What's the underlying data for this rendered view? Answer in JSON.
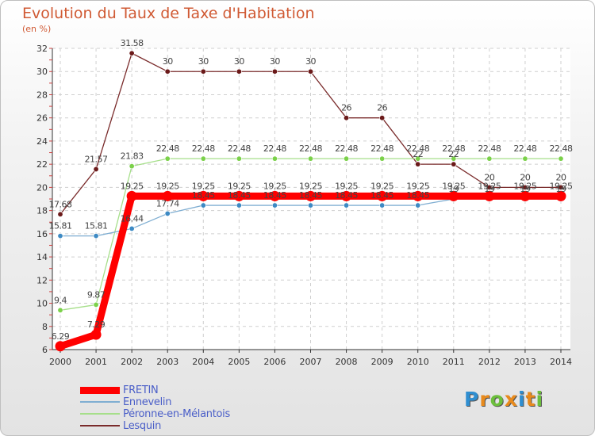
{
  "chart_data": {
    "type": "line",
    "title": "Evolution du Taux de Taxe d'Habitation",
    "subtitle": "(en %)",
    "x": [
      "2000",
      "2001",
      "2002",
      "2003",
      "2004",
      "2005",
      "2006",
      "2007",
      "2008",
      "2009",
      "2010",
      "2011",
      "2012",
      "2013",
      "2014"
    ],
    "ylim": [
      6,
      32
    ],
    "yticks": [
      6,
      8,
      10,
      12,
      14,
      16,
      18,
      20,
      22,
      24,
      26,
      28,
      30,
      32
    ],
    "grid": true,
    "legend_position": "bottom-left",
    "series": [
      {
        "name": "Lesquin",
        "color": "#7a2b2b",
        "marker_color": "#6b1a1a",
        "width": 1.3,
        "values": [
          17.68,
          21.57,
          31.58,
          30,
          30,
          30,
          30,
          30,
          26,
          26,
          22,
          22,
          20,
          20,
          20
        ],
        "labels": [
          "17.68",
          "21.57",
          "31.58",
          "30",
          "30",
          "30",
          "30",
          "30",
          "26",
          "26",
          "22",
          "22",
          "20",
          "20",
          "20"
        ]
      },
      {
        "name": "Péronne-en-Mélantois",
        "color": "#a6df8a",
        "marker_color": "#7bd14a",
        "width": 1.3,
        "values": [
          9.4,
          9.87,
          21.83,
          22.48,
          22.48,
          22.48,
          22.48,
          22.48,
          22.48,
          22.48,
          22.48,
          22.48,
          22.48,
          22.48,
          22.48
        ],
        "labels": [
          "9.4",
          "9.87",
          "21.83",
          "22.48",
          "22.48",
          "22.48",
          "22.48",
          "22.48",
          "22.48",
          "22.48",
          "22.48",
          "22.48",
          "22.48",
          "22.48",
          "22.48"
        ]
      },
      {
        "name": "Ennevelin",
        "color": "#7faed2",
        "marker_color": "#3d8ac4",
        "width": 1.3,
        "values": [
          15.81,
          15.81,
          16.44,
          17.74,
          18.45,
          18.45,
          18.45,
          18.45,
          18.45,
          18.45,
          18.45,
          19,
          19,
          19,
          19
        ],
        "labels": [
          "15.81",
          "15.81",
          "16.44",
          "17.74",
          "18.45",
          "18.45",
          "18.45",
          "18.45",
          "18.45",
          "18.45",
          "18.45",
          "19",
          "19",
          "19",
          "19"
        ]
      },
      {
        "name": "FRETIN",
        "color": "#ff0000",
        "marker_color": "#ff0000",
        "width": 9,
        "values": [
          6.29,
          7.29,
          19.25,
          19.25,
          19.25,
          19.25,
          19.25,
          19.25,
          19.25,
          19.25,
          19.25,
          19.25,
          19.25,
          19.25,
          19.25
        ],
        "labels": [
          "6.29",
          "7.29",
          "19.25",
          "19.25",
          "19.25",
          "19.25",
          "19.25",
          "19.25",
          "19.25",
          "19.25",
          "19.25",
          "19.25",
          "19.25",
          "19.25",
          "19.25"
        ]
      }
    ],
    "legend": [
      "FRETIN",
      "Ennevelin",
      "Péronne-en-Mélantois",
      "Lesquin"
    ]
  },
  "logo": {
    "text": "Proxiti",
    "letters": [
      {
        "ch": "P",
        "color": "#2f8ed0"
      },
      {
        "ch": "r",
        "color": "#e88a1c"
      },
      {
        "ch": "o",
        "color": "#6cbf3c"
      },
      {
        "ch": "x",
        "color": "#e88a1c"
      },
      {
        "ch": "i",
        "color": "#2f8ed0"
      },
      {
        "ch": "t",
        "color": "#e88a1c"
      },
      {
        "ch": "i",
        "color": "#6cbf3c"
      }
    ]
  }
}
